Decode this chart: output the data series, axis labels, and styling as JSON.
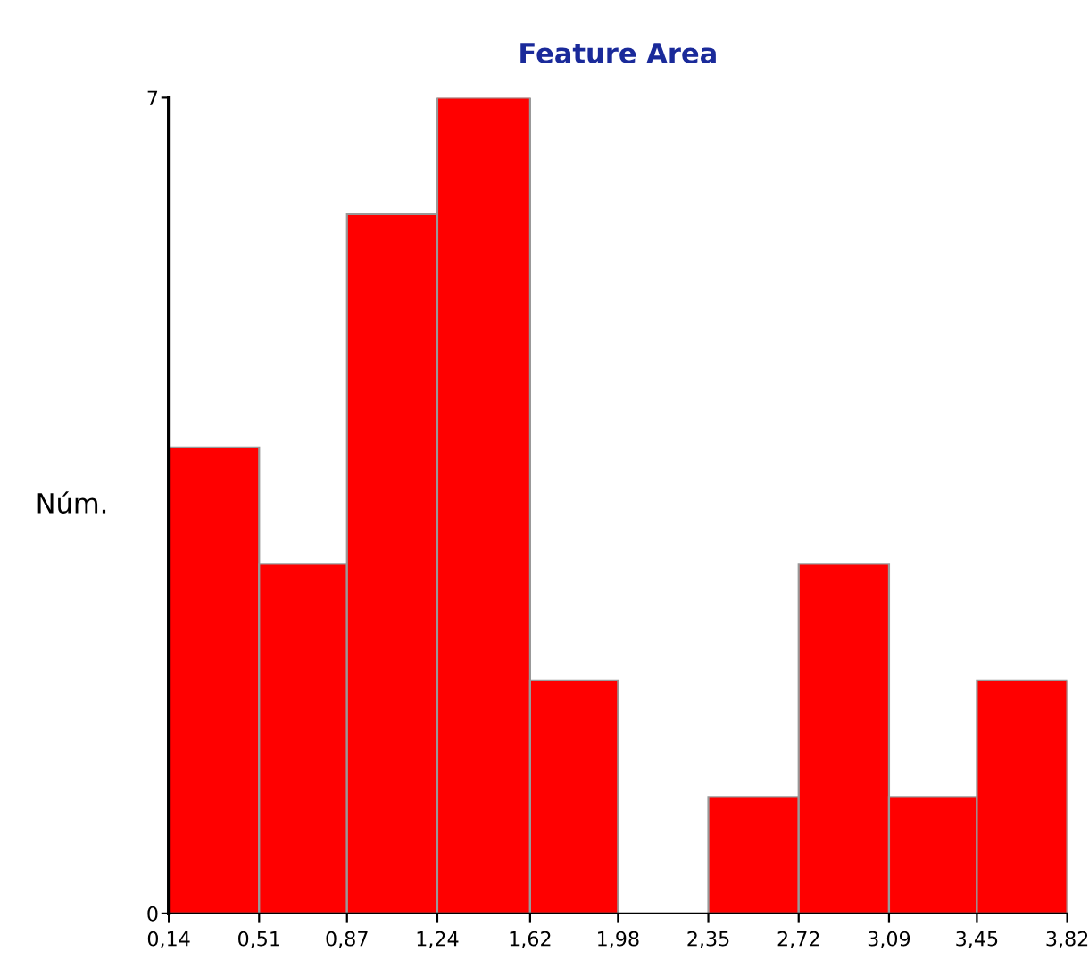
{
  "chart_data": {
    "type": "histogram",
    "title": "Feature Area",
    "ylabel": "Núm.",
    "bins": [
      0.14,
      0.51,
      0.87,
      1.24,
      1.62,
      1.98,
      2.35,
      2.72,
      3.09,
      3.45,
      3.82
    ],
    "values": [
      4,
      3,
      6,
      7,
      2,
      0,
      1,
      3,
      1,
      2
    ],
    "color": "#ff0000",
    "xlim": [
      0.14,
      3.82
    ],
    "xticks": [
      {
        "value": 0.14,
        "label": "0,14"
      },
      {
        "value": 0.51,
        "label": "0,51"
      },
      {
        "value": 0.87,
        "label": "0,87"
      },
      {
        "value": 1.24,
        "label": "1,24"
      },
      {
        "value": 1.62,
        "label": "1,62"
      },
      {
        "value": 1.98,
        "label": "1,98"
      },
      {
        "value": 2.35,
        "label": "2,35"
      },
      {
        "value": 2.72,
        "label": "2,72"
      },
      {
        "value": 3.09,
        "label": "3,09"
      },
      {
        "value": 3.45,
        "label": "3,45"
      },
      {
        "value": 3.82,
        "label": "3,82"
      }
    ],
    "ylim": [
      0,
      7
    ],
    "yticks": [
      0,
      7
    ],
    "grid": false,
    "legend": false
  }
}
